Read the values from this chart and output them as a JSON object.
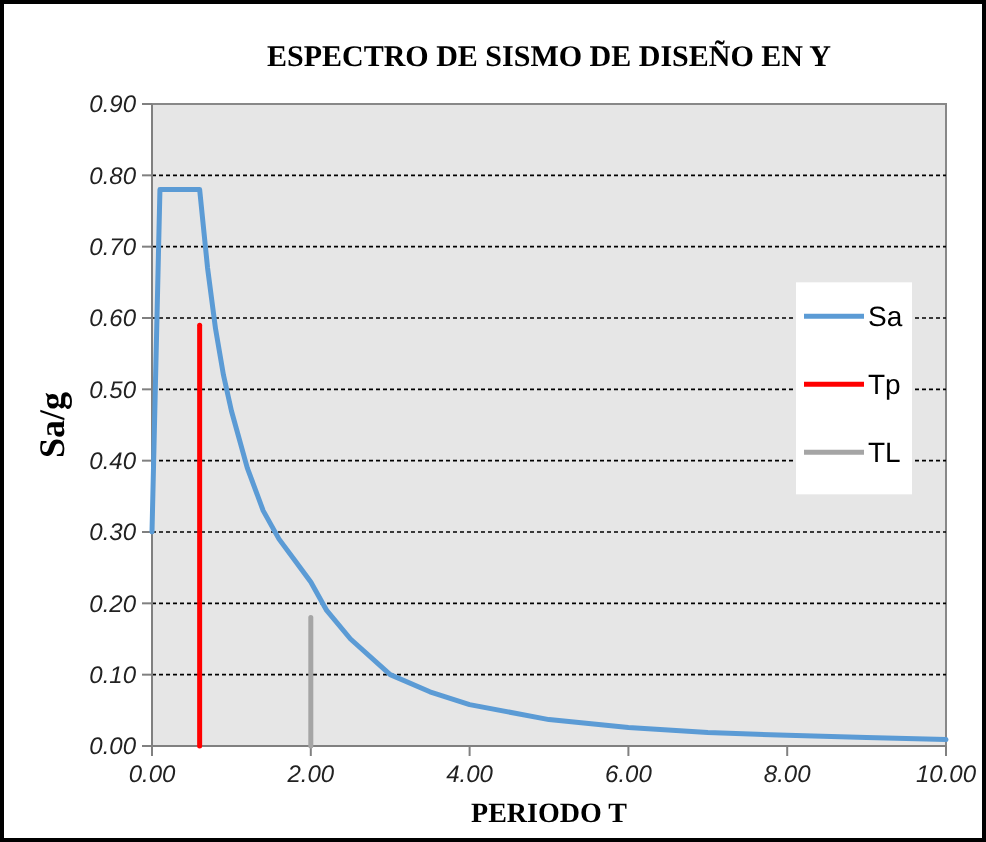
{
  "chart_data": {
    "type": "line",
    "title": "ESPECTRO DE SISMO DE DISEÑO EN Y",
    "xlabel": "PERIODO T",
    "ylabel": "Sa/g",
    "xlim": [
      0,
      10
    ],
    "xticks": [
      {
        "value": 0,
        "label": "0.00"
      },
      {
        "value": 2,
        "label": "2.00"
      },
      {
        "value": 4,
        "label": "4.00"
      },
      {
        "value": 6,
        "label": "6.00"
      },
      {
        "value": 8,
        "label": "8.00"
      },
      {
        "value": 10,
        "label": "10.00"
      }
    ],
    "ylim": [
      0,
      0.9
    ],
    "yticks": [
      {
        "value": 0,
        "label": "0.00"
      },
      {
        "value": 0.1,
        "label": "0.10"
      },
      {
        "value": 0.2,
        "label": "0.20"
      },
      {
        "value": 0.3,
        "label": "0.30"
      },
      {
        "value": 0.4,
        "label": "0.40"
      },
      {
        "value": 0.5,
        "label": "0.50"
      },
      {
        "value": 0.6,
        "label": "0.60"
      },
      {
        "value": 0.7,
        "label": "0.70"
      },
      {
        "value": 0.8,
        "label": "0.80"
      },
      {
        "value": 0.9,
        "label": "0.90"
      }
    ],
    "grid": "y",
    "legend": "right",
    "marker": "none",
    "line_style": "solid",
    "series": [
      {
        "name": "Sa",
        "color": "#5b9bd5",
        "x": [
          0,
          0.1,
          0.6,
          0.7,
          0.8,
          0.9,
          1.0,
          1.2,
          1.4,
          1.6,
          1.8,
          2.0,
          2.2,
          2.5,
          3,
          3.5,
          4,
          5,
          6,
          7,
          8,
          9,
          10
        ],
        "values": [
          0.3,
          0.78,
          0.78,
          0.67,
          0.585,
          0.52,
          0.47,
          0.39,
          0.33,
          0.29,
          0.26,
          0.23,
          0.19,
          0.15,
          0.1,
          0.076,
          0.058,
          0.037,
          0.026,
          0.019,
          0.015,
          0.012,
          0.009
        ]
      },
      {
        "name": "Tp",
        "color": "#ff0000",
        "x": [
          0.6,
          0.6
        ],
        "values": [
          0,
          0.59
        ]
      },
      {
        "name": "TL",
        "color": "#a5a5a5",
        "x": [
          2,
          2
        ],
        "values": [
          0,
          0.18
        ]
      }
    ]
  }
}
